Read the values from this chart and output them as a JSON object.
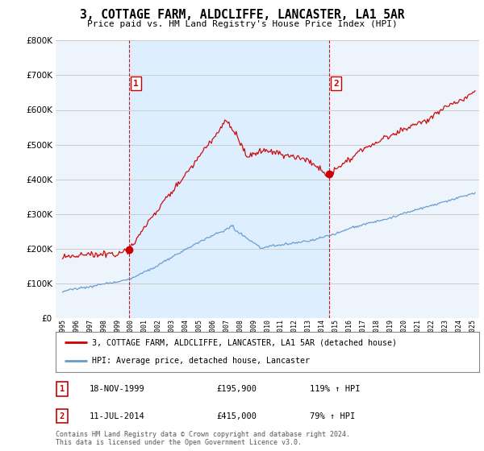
{
  "title": "3, COTTAGE FARM, ALDCLIFFE, LANCASTER, LA1 5AR",
  "subtitle": "Price paid vs. HM Land Registry's House Price Index (HPI)",
  "legend_line1": "3, COTTAGE FARM, ALDCLIFFE, LANCASTER, LA1 5AR (detached house)",
  "legend_line2": "HPI: Average price, detached house, Lancaster",
  "table": [
    {
      "num": "1",
      "date": "18-NOV-1999",
      "price": "£195,900",
      "hpi": "119% ↑ HPI"
    },
    {
      "num": "2",
      "date": "11-JUL-2014",
      "price": "£415,000",
      "hpi": "79% ↑ HPI"
    }
  ],
  "footnote": "Contains HM Land Registry data © Crown copyright and database right 2024.\nThis data is licensed under the Open Government Licence v3.0.",
  "sale1_year": 1999.88,
  "sale1_price": 195900,
  "sale2_year": 2014.52,
  "sale2_price": 415000,
  "red_color": "#cc0000",
  "blue_color": "#6699cc",
  "shade_color": "#ddeeff",
  "grid_color": "#cccccc",
  "vline_color": "#cc0000",
  "background_color": "#ffffff",
  "plot_bg_color": "#eef4fb",
  "ylim": [
    0,
    800000
  ],
  "xlim_start": 1994.5,
  "xlim_end": 2025.5
}
